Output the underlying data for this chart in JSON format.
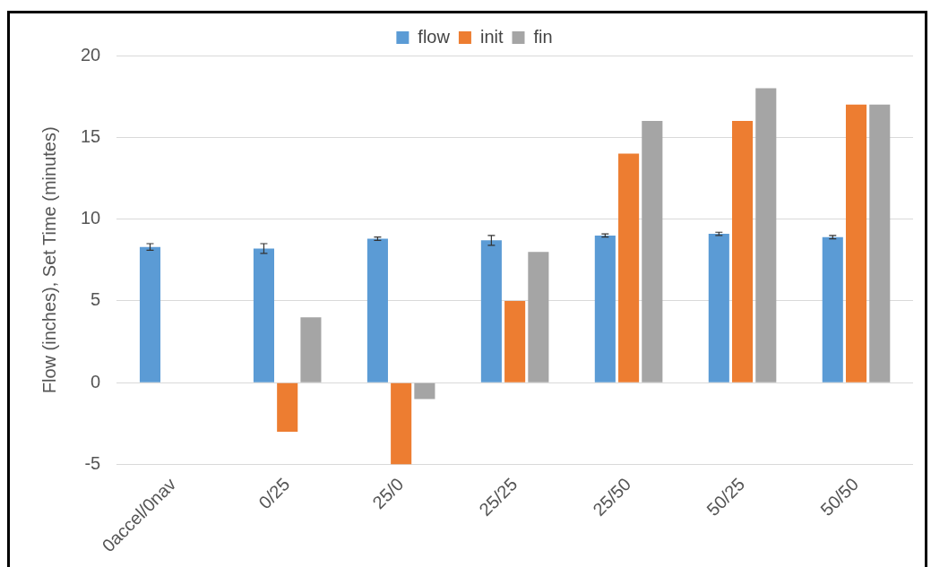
{
  "chart_data": {
    "type": "bar",
    "ylabel": "Flow (inches), Set Time (minutes)",
    "categories": [
      "0accel/0nav",
      "0/25",
      "25/0",
      "25/25",
      "25/50",
      "50/25",
      "50/50"
    ],
    "series": [
      {
        "name": "flow",
        "color": "#5b9bd5",
        "values": [
          8.3,
          8.2,
          8.8,
          8.7,
          9.0,
          9.1,
          8.9
        ],
        "errors": [
          0.2,
          0.3,
          0.1,
          0.3,
          0.1,
          0.1,
          0.1
        ]
      },
      {
        "name": "init",
        "color": "#ed7d31",
        "values": [
          null,
          -3,
          -5,
          5,
          14,
          16,
          17
        ]
      },
      {
        "name": "fin",
        "color": "#a5a5a5",
        "values": [
          null,
          4,
          -1,
          8,
          16,
          18,
          17
        ]
      }
    ],
    "ylim": [
      -5,
      20
    ],
    "yticks": [
      -5,
      0,
      5,
      10,
      15,
      20
    ],
    "grid": "y",
    "legend": "top"
  }
}
